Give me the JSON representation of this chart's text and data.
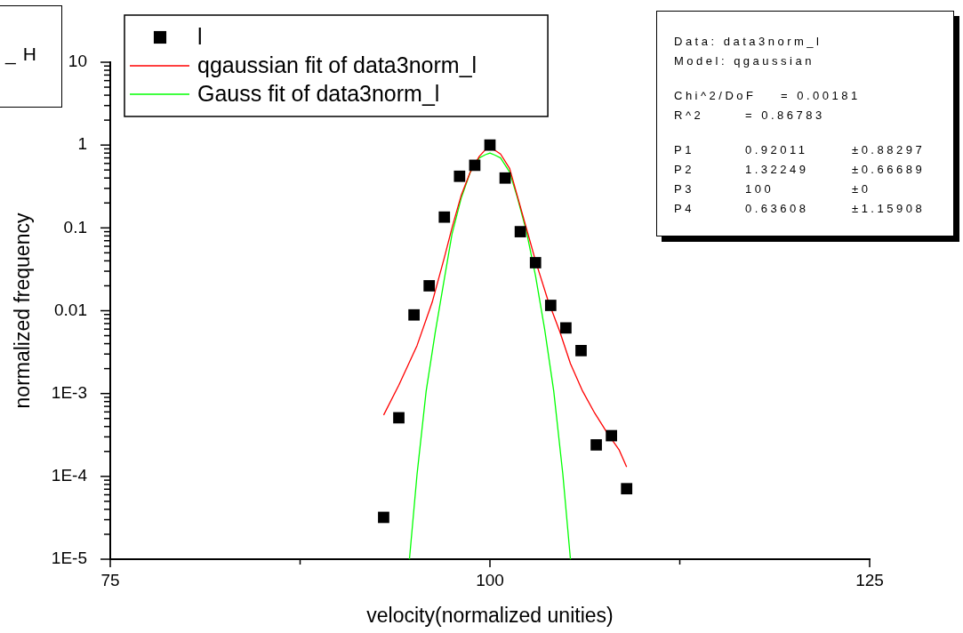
{
  "chart_data": {
    "type": "scatter",
    "xlabel": "velocity(normalized unities)",
    "ylabel": "normalized frequency",
    "log": "y",
    "legend": "top left",
    "xlim": [
      75,
      125
    ],
    "xticks": [
      75,
      {
        "value": 87.5,
        "label": null
      },
      100,
      {
        "value": 112.5,
        "label": null
      },
      125
    ],
    "ylim": [
      1e-05,
      10
    ],
    "yticks": [
      {
        "value": 1e-05,
        "label": "1E-5"
      },
      {
        "value": 2e-05,
        "label": null
      },
      {
        "value": 3e-05,
        "label": null
      },
      {
        "value": 4e-05,
        "label": null
      },
      {
        "value": 5e-05,
        "label": null
      },
      {
        "value": 6e-05,
        "label": null
      },
      {
        "value": 7e-05,
        "label": null
      },
      {
        "value": 8e-05,
        "label": null
      },
      {
        "value": 9e-05,
        "label": null
      },
      {
        "value": 0.0001,
        "label": "1E-4"
      },
      {
        "value": 0.0002,
        "label": null
      },
      {
        "value": 0.0003,
        "label": null
      },
      {
        "value": 0.0004,
        "label": null
      },
      {
        "value": 0.0005,
        "label": null
      },
      {
        "value": 0.0006,
        "label": null
      },
      {
        "value": 0.0007,
        "label": null
      },
      {
        "value": 0.0008,
        "label": null
      },
      {
        "value": 0.0009,
        "label": null
      },
      {
        "value": 0.001,
        "label": "1E-3"
      },
      {
        "value": 0.002,
        "label": null
      },
      {
        "value": 0.003,
        "label": null
      },
      {
        "value": 0.004,
        "label": null
      },
      {
        "value": 0.005,
        "label": null
      },
      {
        "value": 0.006,
        "label": null
      },
      {
        "value": 0.007,
        "label": null
      },
      {
        "value": 0.008,
        "label": null
      },
      {
        "value": 0.009,
        "label": null
      },
      0.01,
      {
        "value": 0.02,
        "label": null
      },
      {
        "value": 0.03,
        "label": null
      },
      {
        "value": 0.04,
        "label": null
      },
      {
        "value": 0.05,
        "label": null
      },
      {
        "value": 0.06,
        "label": null
      },
      {
        "value": 0.07,
        "label": null
      },
      {
        "value": 0.08,
        "label": null
      },
      {
        "value": 0.09,
        "label": null
      },
      0.1,
      {
        "value": 0.2,
        "label": null
      },
      {
        "value": 0.3,
        "label": null
      },
      {
        "value": 0.4,
        "label": null
      },
      {
        "value": 0.5,
        "label": null
      },
      {
        "value": 0.6,
        "label": null
      },
      {
        "value": 0.7,
        "label": null
      },
      {
        "value": 0.8,
        "label": null
      },
      {
        "value": 0.9,
        "label": null
      },
      1,
      {
        "value": 2,
        "label": null
      },
      {
        "value": 3,
        "label": null
      },
      {
        "value": 4,
        "label": null
      },
      {
        "value": 5,
        "label": null
      },
      {
        "value": 6,
        "label": null
      },
      {
        "value": 7,
        "label": null
      },
      {
        "value": 8,
        "label": null
      },
      {
        "value": 9,
        "label": null
      },
      10
    ],
    "x": [
      93,
      94,
      95,
      96,
      97,
      98,
      99,
      100,
      101,
      102,
      103,
      104,
      105,
      106,
      107,
      108,
      109
    ],
    "series": [
      {
        "name": "l",
        "marker": "square",
        "color": "#000000",
        "values": [
          3.2e-05,
          0.00051,
          0.0089,
          0.02,
          0.135,
          0.42,
          0.57,
          1.0,
          0.4,
          0.09,
          0.038,
          0.0116,
          0.0062,
          0.0033,
          0.00024,
          0.00031,
          7.1e-05
        ]
      },
      {
        "name": "qgaussian fit of data3norm_l",
        "type": "line",
        "color": "#ff0000",
        "x": [
          93,
          94,
          95.2,
          96.2,
          97,
          97.5,
          98.1,
          98.7,
          99.3,
          99.7,
          100,
          100.3,
          100.7,
          101.3,
          101.8,
          102.4,
          103,
          103.8,
          104.6,
          105.3,
          106.1,
          106.9,
          107.7,
          108.5,
          109
        ],
        "values": [
          0.00055,
          0.00126,
          0.0038,
          0.0127,
          0.044,
          0.1,
          0.245,
          0.47,
          0.73,
          0.88,
          0.92,
          0.87,
          0.78,
          0.52,
          0.245,
          0.099,
          0.04,
          0.0137,
          0.0056,
          0.0023,
          0.00107,
          0.00058,
          0.00034,
          0.00021,
          0.00013
        ]
      },
      {
        "name": "Gauss fit of data3norm_l",
        "type": "line",
        "color": "#00ff00",
        "x": [
          94.7,
          95.2,
          95.8,
          96.4,
          97,
          97.5,
          98.1,
          98.7,
          99.3,
          99.7,
          100,
          100.3,
          100.7,
          101.3,
          101.8,
          102.4,
          103,
          103.6,
          104.2,
          104.8,
          105.3
        ],
        "values": [
          1e-05,
          0.000106,
          0.00107,
          0.0055,
          0.0244,
          0.084,
          0.226,
          0.47,
          0.7,
          0.765,
          0.8,
          0.76,
          0.7,
          0.47,
          0.235,
          0.091,
          0.0265,
          0.006,
          0.00107,
          0.000106,
          1e-05
        ]
      }
    ],
    "annotations": [
      "_H",
      "Data: data3norm_l\nModel: qgaussian\n\nChi^2/DoF\t= 0.00181\nR^2\t= 0.86783\n\nP1\t0.92011\t±0.88297\nP2\t1.32249\t±0.66689\nP3\t100\t±0\nP4\t0.63608\t±1.15908"
    ]
  }
}
